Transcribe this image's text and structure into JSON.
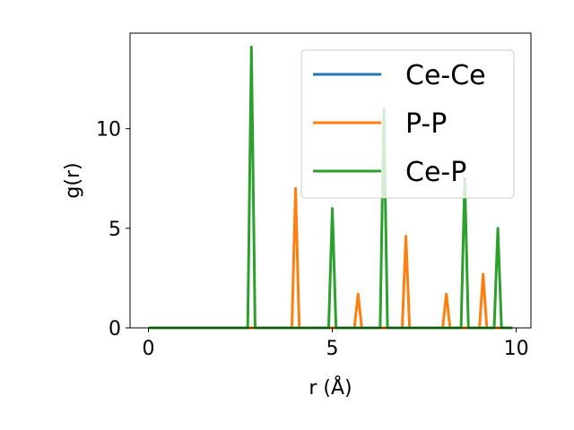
{
  "chart_data": {
    "type": "line",
    "xlabel": "r (Å)",
    "ylabel": "g(r)",
    "xlim": [
      -0.5,
      10.4
    ],
    "ylim": [
      0,
      14.8
    ],
    "xticks": [
      0,
      5,
      10
    ],
    "yticks": [
      0,
      5,
      10
    ],
    "grid": false,
    "legend_position": "top-right",
    "series": [
      {
        "name": "Ce-Ce",
        "color": "#1f77b4",
        "x": [
          0,
          9.9
        ],
        "y": [
          0,
          0
        ]
      },
      {
        "name": "P-P",
        "color": "#ff7f0e",
        "x": [
          0,
          3.9,
          4.0,
          4.1,
          5.6,
          5.7,
          5.8,
          6.9,
          7.0,
          7.1,
          8.0,
          8.1,
          8.2,
          9.0,
          9.1,
          9.2,
          9.9
        ],
        "y": [
          0,
          0,
          7.0,
          0,
          0,
          1.7,
          0,
          0,
          4.6,
          0,
          0,
          1.7,
          0,
          0,
          2.7,
          0,
          0
        ]
      },
      {
        "name": "Ce-P",
        "color": "#2ca02c",
        "x": [
          0,
          2.7,
          2.8,
          2.9,
          4.9,
          5.0,
          5.1,
          6.3,
          6.4,
          6.5,
          8.5,
          8.6,
          8.7,
          9.4,
          9.5,
          9.6,
          9.9
        ],
        "y": [
          0,
          0,
          14.1,
          0,
          0,
          6.0,
          0,
          0,
          11.0,
          0,
          0,
          7.5,
          0,
          0,
          5.0,
          0,
          0
        ]
      }
    ]
  }
}
